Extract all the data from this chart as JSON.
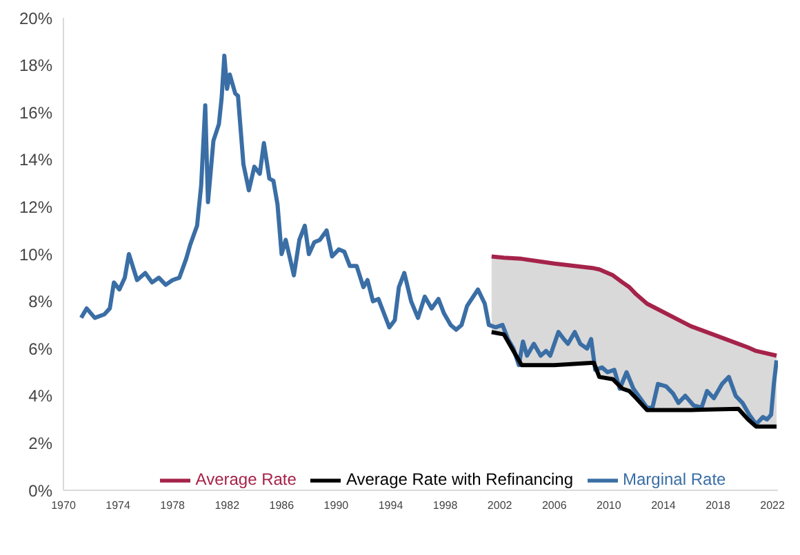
{
  "chart_data": {
    "type": "line",
    "xlim": [
      1970,
      2022.4
    ],
    "xticks": [
      1970,
      1974,
      1978,
      1982,
      1986,
      1990,
      1994,
      1998,
      2002,
      2006,
      2010,
      2014,
      2018,
      2022
    ],
    "ylim": [
      0,
      20
    ],
    "yticks": [
      {
        "value": 0,
        "label": "0%"
      },
      {
        "value": 2,
        "label": "2%"
      },
      {
        "value": 4,
        "label": "4%"
      },
      {
        "value": 6,
        "label": "6%"
      },
      {
        "value": 8,
        "label": "8%"
      },
      {
        "value": 10,
        "label": "10%"
      },
      {
        "value": 12,
        "label": "12%"
      },
      {
        "value": 14,
        "label": "14%"
      },
      {
        "value": 16,
        "label": "16%"
      },
      {
        "value": 18,
        "label": "18%"
      },
      {
        "value": 20,
        "label": "20%"
      }
    ],
    "grid": false,
    "legend": "bottom",
    "marker": "none",
    "line_style": "solid",
    "series": [
      {
        "name": "Marginal Rate",
        "color": "#3a6ea5",
        "x": [
          1971.3,
          1971.7,
          1972.3,
          1973.0,
          1973.4,
          1973.7,
          1974.1,
          1974.5,
          1974.8,
          1975.4,
          1976.0,
          1976.5,
          1977.0,
          1977.5,
          1978.0,
          1978.5,
          1979.0,
          1979.3,
          1979.8,
          1980.1,
          1980.4,
          1980.6,
          1981.0,
          1981.4,
          1981.6,
          1981.8,
          1982.0,
          1982.2,
          1982.6,
          1982.8,
          1983.2,
          1983.6,
          1984.0,
          1984.4,
          1984.7,
          1985.1,
          1985.4,
          1985.7,
          1986.0,
          1986.3,
          1986.9,
          1987.3,
          1987.7,
          1988.0,
          1988.4,
          1988.8,
          1989.3,
          1989.7,
          1990.2,
          1990.6,
          1991.0,
          1991.5,
          1992.0,
          1992.3,
          1992.7,
          1993.1,
          1993.5,
          1993.9,
          1994.3,
          1994.6,
          1995.0,
          1995.5,
          1996.0,
          1996.5,
          1997.0,
          1997.5,
          1997.9,
          1998.4,
          1998.8,
          1999.2,
          1999.6,
          2000.4,
          2000.9,
          2001.2,
          2001.7,
          2002.2,
          2002.6,
          2003.0,
          2003.4,
          2003.7,
          2004.0,
          2004.5,
          2005.0,
          2005.4,
          2005.7,
          2006.3,
          2006.7,
          2007.0,
          2007.5,
          2007.9,
          2008.4,
          2008.7,
          2009.0,
          2009.5,
          2009.9,
          2010.4,
          2010.8,
          2011.3,
          2011.8,
          2012.3,
          2012.8,
          2013.2,
          2013.6,
          2014.2,
          2014.7,
          2015.1,
          2015.6,
          2016.2,
          2016.8,
          2017.2,
          2017.7,
          2018.3,
          2018.8,
          2019.3,
          2019.8,
          2020.3,
          2020.8,
          2021.3,
          2021.6,
          2021.9,
          2022.1,
          2022.3
        ],
        "values": [
          7.3,
          7.7,
          7.3,
          7.45,
          7.7,
          8.8,
          8.5,
          9.0,
          10.0,
          8.9,
          9.2,
          8.8,
          9.0,
          8.7,
          8.9,
          9.0,
          9.8,
          10.4,
          11.2,
          12.9,
          16.3,
          12.2,
          14.8,
          15.5,
          16.6,
          18.4,
          17.0,
          17.6,
          16.8,
          16.7,
          13.8,
          12.7,
          13.7,
          13.4,
          14.7,
          13.2,
          13.1,
          12.1,
          10.0,
          10.6,
          9.1,
          10.6,
          11.2,
          10.0,
          10.5,
          10.6,
          11.0,
          9.9,
          10.2,
          10.1,
          9.5,
          9.5,
          8.6,
          8.9,
          8.0,
          8.1,
          7.5,
          6.9,
          7.2,
          8.6,
          9.2,
          8.0,
          7.3,
          8.2,
          7.7,
          8.1,
          7.5,
          7.0,
          6.8,
          7.0,
          7.8,
          8.5,
          7.9,
          7.0,
          6.9,
          7.0,
          6.4,
          6.0,
          5.3,
          6.3,
          5.7,
          6.2,
          5.7,
          5.9,
          5.7,
          6.7,
          6.4,
          6.2,
          6.7,
          6.2,
          6.0,
          6.4,
          5.1,
          5.2,
          5.0,
          5.1,
          4.3,
          5.0,
          4.3,
          3.9,
          3.5,
          3.5,
          4.5,
          4.4,
          4.1,
          3.7,
          4.0,
          3.6,
          3.5,
          4.2,
          3.9,
          4.5,
          4.8,
          4.0,
          3.7,
          3.2,
          2.8,
          3.1,
          3.0,
          3.2,
          4.5,
          5.5
        ]
      },
      {
        "name": "Average Rate",
        "color": "#a5234a",
        "x": [
          2001.4,
          2002.3,
          2003.6,
          2006,
          2008.9,
          2009.3,
          2010.3,
          2011,
          2011.5,
          2012,
          2012.8,
          2016,
          2019.5,
          2020.2,
          2020.8,
          2022.3
        ],
        "values": [
          9.9,
          9.85,
          9.8,
          9.6,
          9.4,
          9.35,
          9.1,
          8.8,
          8.6,
          8.3,
          7.9,
          6.95,
          6.2,
          6.05,
          5.9,
          5.7
        ],
        "lower": [
          6.7,
          6.6,
          5.3,
          5.3,
          5.4,
          4.8,
          4.7,
          4.3,
          4.2,
          3.9,
          3.4,
          3.4,
          3.45,
          3.0,
          2.7,
          2.7
        ],
        "upper": [
          9.9,
          9.85,
          9.8,
          9.6,
          9.4,
          9.35,
          9.1,
          8.8,
          8.6,
          8.3,
          7.9,
          6.95,
          6.2,
          6.05,
          5.9,
          5.7
        ]
      },
      {
        "name": "Average Rate with Refinancing",
        "color": "#000000",
        "x": [
          2001.4,
          2002.3,
          2003.6,
          2006,
          2008.9,
          2009.3,
          2010.3,
          2011,
          2011.5,
          2012,
          2012.8,
          2016,
          2019.5,
          2020.2,
          2020.8,
          2022.3
        ],
        "values": [
          6.7,
          6.6,
          5.3,
          5.3,
          5.4,
          4.8,
          4.7,
          4.3,
          4.2,
          3.9,
          3.4,
          3.4,
          3.45,
          3.0,
          2.7,
          2.7
        ]
      }
    ]
  }
}
